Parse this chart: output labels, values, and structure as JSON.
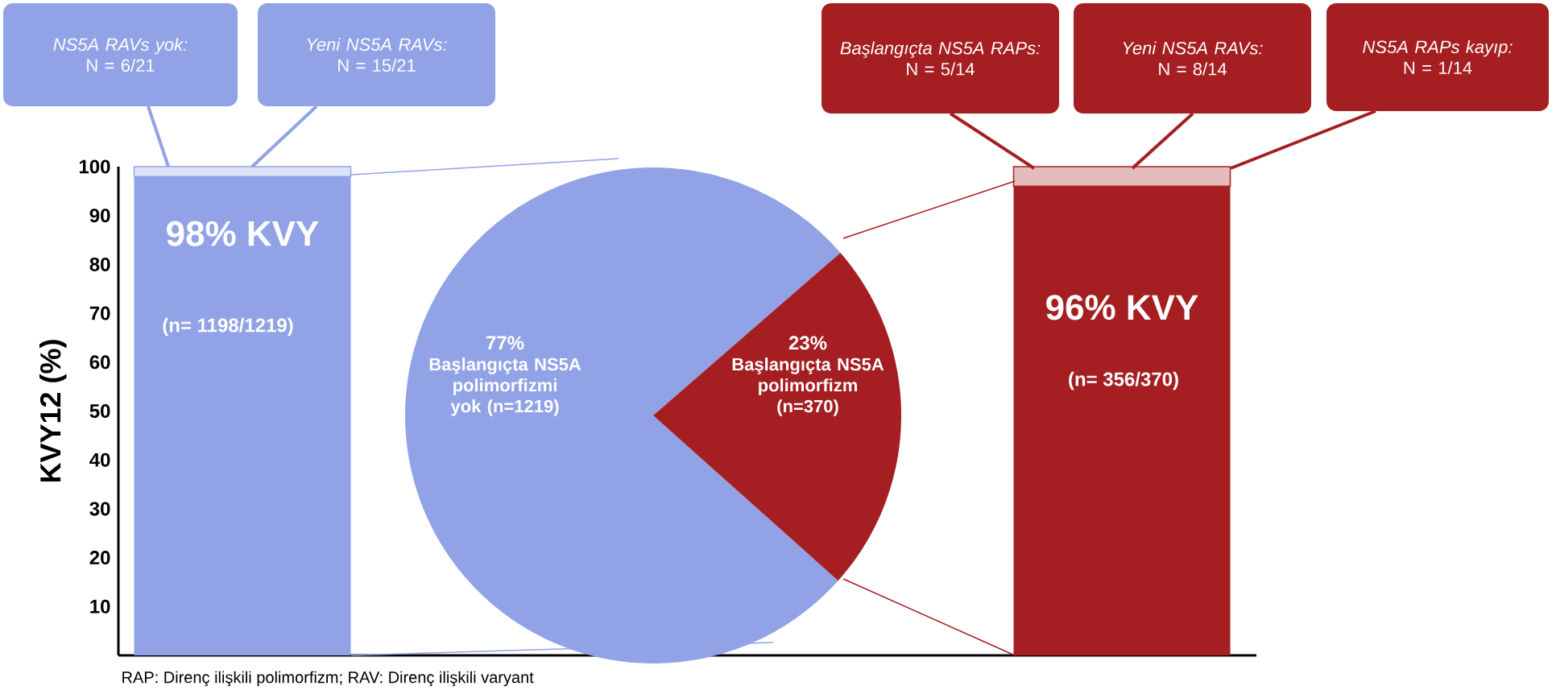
{
  "chart_data": [
    {
      "type": "bar",
      "stacked": true,
      "ylabel": "KVY12 (%)",
      "categories": [
        null,
        null
      ],
      "series": [
        {
          "colors": [
            "#91a3e6",
            "#a51f22"
          ],
          "values": [
            98,
            96
          ],
          "value_labels": [
            "98% KVY",
            "96% KVY"
          ]
        },
        {
          "colors": [
            "#91a3e6",
            "#a51f22"
          ],
          "values": [
            2,
            4
          ]
        }
      ],
      "ylim": [
        0,
        100
      ],
      "yticks": [
        10,
        20,
        30,
        40,
        50,
        60,
        70,
        80,
        90,
        100
      ],
      "annotations": [
        "(n= 1198/1219)",
        "(n= 356/370)",
        "NS5A RAVs yok:",
        "N = 6/21",
        "Yeni NS5A RAVs:",
        "N = 15/21",
        "Başlangıçta NS5A RAPs:",
        "N = 5/14",
        "Yeni NS5A RAVs:",
        "N = 8/14",
        "NS5A RAPs kayıp:",
        "N = 1/14",
        "RAP: Direnç ilişkili polimorfizm; RAV: Direnç ilişkili varyant"
      ]
    },
    {
      "type": "pie",
      "categories": [
        "Başlangıçta NS5A polimorfizmi yok (n=1219)",
        "Başlangıçta NS5A polimorfizm (n=370)"
      ],
      "values": [
        77,
        23
      ],
      "colors": [
        "#91a3e6",
        "#a51f22"
      ],
      "value_labels": [
        "77%",
        "23%"
      ]
    }
  ]
}
